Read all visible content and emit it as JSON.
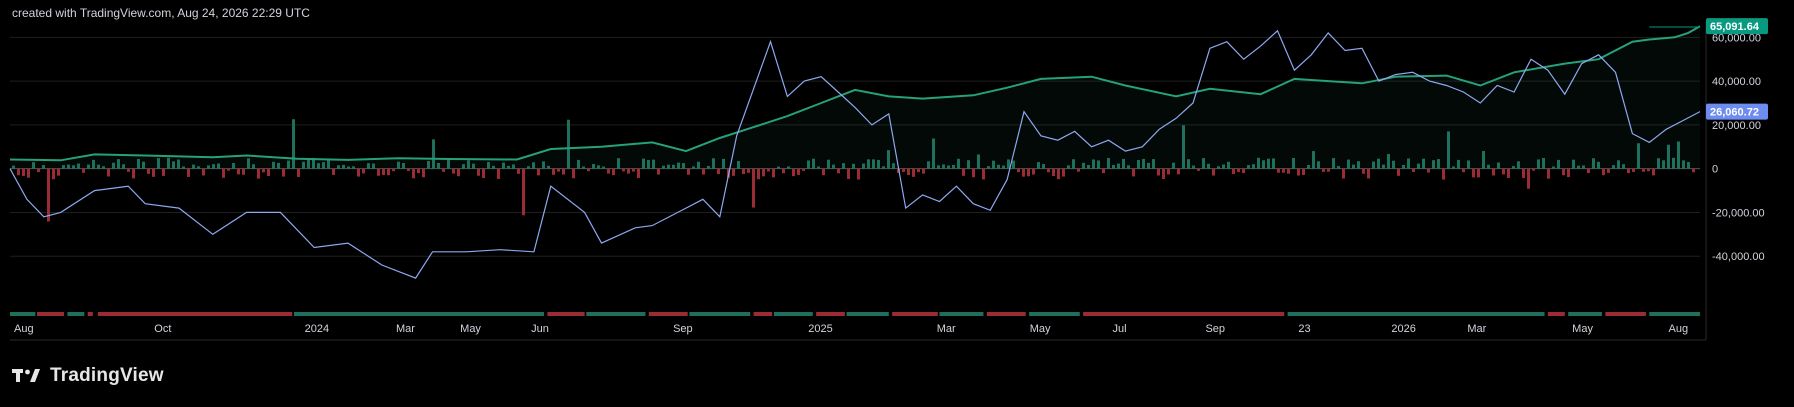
{
  "header": {
    "caption": "created with TradingView.com, Aug 24, 2026 22:29 UTC"
  },
  "brand": {
    "name": "TradingView",
    "logo_icon": "tradingview-logo-icon"
  },
  "colors": {
    "background": "#000000",
    "grid": "#1f1f1f",
    "green_line": "#26a17b",
    "blue_line": "#8ea8ee",
    "volume_up": "#1e6f5c",
    "volume_down": "#9b2c33",
    "strip_up": "#1e6f5c",
    "strip_down": "#9b2c33",
    "green_tag": "#089981",
    "blue_tag": "#6c8cf0"
  },
  "chart_data": {
    "type": "line",
    "title": "",
    "ylim": [
      -60000,
      67000
    ],
    "y_ticks": [
      "60,000.00",
      "40,000.00",
      "20,000.00",
      "0",
      "-20,000.00",
      "-40,000.00"
    ],
    "y_tick_values": [
      60000,
      40000,
      20000,
      0,
      -20000,
      -40000
    ],
    "x_tick_labels": [
      "Aug",
      "Oct",
      "2024",
      "Mar",
      "May",
      "Jun",
      "Sep",
      "2025",
      "Mar",
      "May",
      "Jul",
      "Sep",
      "23",
      "2026",
      "Mar",
      "May",
      "Aug"
    ],
    "x_tick_positions": [
      0,
      8.3,
      17.2,
      22.6,
      26.4,
      30.6,
      39.0,
      47.0,
      54.6,
      60.1,
      65.0,
      70.5,
      76.0,
      81.5,
      86.0,
      92.2,
      97.9
    ],
    "x_range": [
      0,
      100
    ],
    "last_values": {
      "green": "65,091.64",
      "blue": "26,060.72"
    },
    "series": [
      {
        "key": "green",
        "points": [
          [
            0,
            4200
          ],
          [
            3,
            3800
          ],
          [
            5,
            6500
          ],
          [
            8,
            6000
          ],
          [
            12,
            5200
          ],
          [
            14,
            6000
          ],
          [
            17,
            4500
          ],
          [
            20,
            4000
          ],
          [
            23,
            4800
          ],
          [
            26,
            4400
          ],
          [
            30,
            4200
          ],
          [
            32,
            9000
          ],
          [
            35,
            10000
          ],
          [
            38,
            12000
          ],
          [
            40,
            8000
          ],
          [
            42,
            14000
          ],
          [
            44,
            19000
          ],
          [
            46,
            24000
          ],
          [
            48,
            30000
          ],
          [
            50,
            36000
          ],
          [
            52,
            33000
          ],
          [
            54,
            32000
          ],
          [
            57,
            33500
          ],
          [
            59,
            37000
          ],
          [
            61,
            41000
          ],
          [
            64,
            42000
          ],
          [
            66,
            38000
          ],
          [
            69,
            33000
          ],
          [
            71,
            36500
          ],
          [
            74,
            34000
          ],
          [
            76,
            41000
          ],
          [
            78,
            40000
          ],
          [
            80,
            39000
          ],
          [
            82,
            42000
          ],
          [
            85,
            42500
          ],
          [
            87,
            38000
          ],
          [
            89,
            44000
          ],
          [
            92,
            48000
          ],
          [
            94,
            50000
          ],
          [
            96,
            58000
          ],
          [
            97,
            59000
          ],
          [
            98.5,
            60000
          ],
          [
            99.3,
            62000
          ],
          [
            100,
            65091.64
          ]
        ]
      },
      {
        "key": "blue",
        "points": [
          [
            0,
            0
          ],
          [
            1,
            -14000
          ],
          [
            2,
            -22000
          ],
          [
            3,
            -20000
          ],
          [
            5,
            -10000
          ],
          [
            7,
            -8000
          ],
          [
            8,
            -16000
          ],
          [
            10,
            -18000
          ],
          [
            12,
            -30000
          ],
          [
            14,
            -20000
          ],
          [
            16,
            -20000
          ],
          [
            18,
            -36000
          ],
          [
            20,
            -34000
          ],
          [
            22,
            -44000
          ],
          [
            24,
            -50000
          ],
          [
            25,
            -38000
          ],
          [
            27,
            -38000
          ],
          [
            29,
            -37000
          ],
          [
            31,
            -38000
          ],
          [
            32,
            -8000
          ],
          [
            34,
            -20000
          ],
          [
            35,
            -34000
          ],
          [
            37,
            -27000
          ],
          [
            38,
            -26000
          ],
          [
            40,
            -18000
          ],
          [
            41,
            -14000
          ],
          [
            42,
            -22000
          ],
          [
            43,
            15000
          ],
          [
            45,
            58000
          ],
          [
            46,
            33000
          ],
          [
            47,
            40000
          ],
          [
            48,
            42000
          ],
          [
            49,
            35000
          ],
          [
            50,
            28000
          ],
          [
            51,
            20000
          ],
          [
            52,
            25000
          ],
          [
            53,
            -18000
          ],
          [
            54,
            -12000
          ],
          [
            55,
            -15000
          ],
          [
            56,
            -8000
          ],
          [
            57,
            -16000
          ],
          [
            58,
            -19000
          ],
          [
            59,
            -5000
          ],
          [
            60,
            26000
          ],
          [
            61,
            15000
          ],
          [
            62,
            13000
          ],
          [
            63,
            17000
          ],
          [
            64,
            10000
          ],
          [
            65,
            13000
          ],
          [
            66,
            8000
          ],
          [
            67,
            10000
          ],
          [
            68,
            18000
          ],
          [
            69,
            23000
          ],
          [
            70,
            30000
          ],
          [
            71,
            55000
          ],
          [
            72,
            58000
          ],
          [
            73,
            50000
          ],
          [
            74,
            56000
          ],
          [
            75,
            63000
          ],
          [
            76,
            45000
          ],
          [
            77,
            52000
          ],
          [
            78,
            62000
          ],
          [
            79,
            54000
          ],
          [
            80,
            55000
          ],
          [
            81,
            40000
          ],
          [
            82,
            43000
          ],
          [
            83,
            44000
          ],
          [
            84,
            40000
          ],
          [
            85,
            38000
          ],
          [
            86,
            35000
          ],
          [
            87,
            30000
          ],
          [
            88,
            38000
          ],
          [
            89,
            35000
          ],
          [
            90,
            50000
          ],
          [
            91,
            45000
          ],
          [
            92,
            34000
          ],
          [
            93,
            48000
          ],
          [
            94,
            52000
          ],
          [
            95,
            44000
          ],
          [
            96,
            16000
          ],
          [
            97,
            12000
          ],
          [
            98,
            18000
          ],
          [
            99,
            22000
          ],
          [
            100,
            26060.72
          ]
        ]
      }
    ]
  }
}
